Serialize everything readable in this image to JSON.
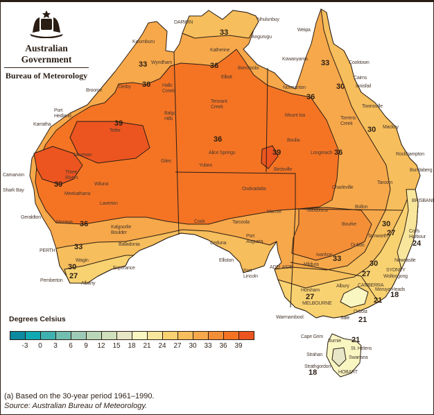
{
  "header": {
    "government": "Australian Government",
    "agency": "Bureau of Meteorology",
    "logo_icon": "coat-of-arms-icon"
  },
  "legend": {
    "title": "Degrees Celsius",
    "ticks": [
      "-3",
      "0",
      "3",
      "6",
      "9",
      "12",
      "15",
      "18",
      "21",
      "24",
      "27",
      "30",
      "33",
      "36",
      "39"
    ],
    "colors": [
      "#0b8aa0",
      "#10a9b3",
      "#3fb1b0",
      "#72bfb2",
      "#9dcbb8",
      "#bad7b8",
      "#d0e0bd",
      "#e7e6c6",
      "#f9f6c2",
      "#f8e69c",
      "#f8d271",
      "#f6be5c",
      "#f6a84a",
      "#f58f37",
      "#f47424",
      "#ec5520"
    ]
  },
  "contour_labels": [
    "33",
    "33",
    "36",
    "36",
    "39",
    "36",
    "39",
    "36",
    "39",
    "36",
    "36",
    "33",
    "30",
    "30",
    "33",
    "30",
    "27",
    "33",
    "30",
    "27",
    "24",
    "27",
    "30",
    "27",
    "18",
    "21",
    "21",
    "21",
    "18"
  ],
  "cities": [
    "DARWIN",
    "Nhulunbuy",
    "Angurugu",
    "Katherine",
    "Kalumburu",
    "Wyndham",
    "Broome",
    "Derby",
    "Halls\nCreek",
    "Port\nHedland",
    "Karratha",
    "Balgo\nHills",
    "Telfer",
    "Newman",
    "Carnarvon",
    "Shark Bay",
    "Three\nRivers",
    "Wiluna",
    "Meekatharra",
    "Giles",
    "Laverton",
    "Yulara",
    "Alice Springs",
    "Tennant\nCreek",
    "Elliott",
    "Borroloola",
    "Weipa",
    "Kowanyama",
    "Normanton",
    "Cooktown",
    "Cairns",
    "Innisfail",
    "Townsville",
    "Torrens\nCreek",
    "Mount Isa",
    "Boulia",
    "Longreach",
    "Mackay",
    "Rockhampton",
    "Birdsville",
    "Oodnadatta",
    "Bundaberg",
    "Taroom",
    "Charleville",
    "BRISBANE",
    "Bollon",
    "Marree",
    "Tibooburra",
    "Bourke",
    "Geraldton",
    "Morawa",
    "Kalgoorlie\nBoulder",
    "Cook",
    "Tarcoola",
    "Balladonia",
    "PERTH",
    "Port\nAugusta",
    "Ceduna",
    "Coffs\nHarbour",
    "Tamworth",
    "Dubbo",
    "Wagin",
    "Esperance",
    "Elliston",
    "Ivanhoe",
    "Newcastle",
    "Mildura",
    "ADELAIDE",
    "Port\nLincoln",
    "Pemberton",
    "Albany",
    "SYDNEY",
    "Wollongong",
    "Horsham",
    "Albury",
    "CANBERRA",
    "Moruya Heads",
    "MELBOURNE",
    "Orbost",
    "Sale",
    "Warrnambool",
    "Cape Grim",
    "Burnie",
    "St. Helens",
    "Strahan",
    "Swansea",
    "Strathgordon",
    "HOBART"
  ],
  "footnote": "(a) Based on the 30-year period 1961–1990.",
  "source": "Source: Australian Bureau of Meteorology."
}
